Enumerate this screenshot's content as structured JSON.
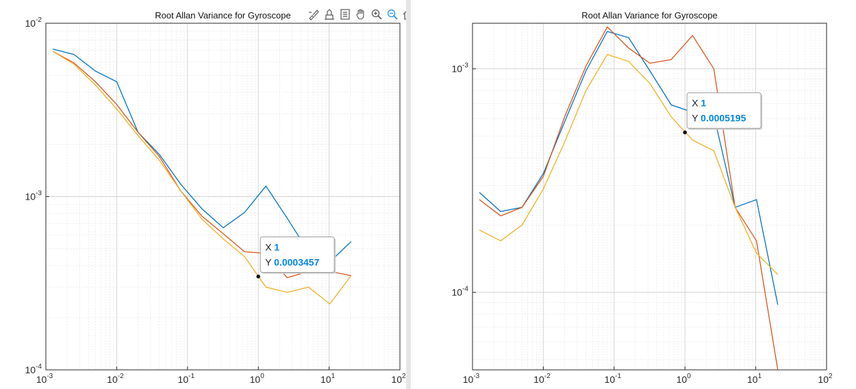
{
  "colors": {
    "series": [
      "#0072BD",
      "#D95319",
      "#EDB120"
    ],
    "grid_major": "#d0d0d0",
    "grid_minor": "#e8e8e8",
    "axes": "#262626",
    "datatip_value": "#0085e0"
  },
  "toolbar": {
    "icons": [
      "brush-icon",
      "data-cursor-icon",
      "restore-view-icon",
      "pan-icon",
      "zoom-in-icon",
      "zoom-out-icon",
      "home-icon"
    ]
  },
  "chart_data": [
    {
      "type": "line",
      "title": "Root Allan Variance for Gyroscope",
      "xlabel": "",
      "ylabel": "",
      "x_scale": "log",
      "y_scale": "log",
      "xlim": [
        0.001,
        100
      ],
      "ylim": [
        0.0001,
        0.01
      ],
      "grid": true,
      "minor_grid": true,
      "x_ticks": [
        0.001,
        0.01,
        0.1,
        1,
        10,
        100
      ],
      "x_tick_labels": [
        [
          "10",
          "-3"
        ],
        [
          "10",
          "-2"
        ],
        [
          "10",
          "-1"
        ],
        [
          "10",
          "0"
        ],
        [
          "10",
          "1"
        ],
        [
          "10",
          "2"
        ]
      ],
      "y_ticks": [
        0.0001,
        0.001,
        0.01
      ],
      "y_tick_labels": [
        [
          "10",
          "-4"
        ],
        [
          "10",
          "-3"
        ],
        [
          "10",
          "-2"
        ]
      ],
      "x": [
        0.00125,
        0.0025,
        0.005,
        0.01,
        0.02,
        0.04,
        0.08,
        0.16,
        0.32,
        0.64,
        1.28,
        2.56,
        5.12,
        10.24,
        20.48
      ],
      "series": [
        {
          "values": [
            0.0071,
            0.0066,
            0.0053,
            0.0046,
            0.00235,
            0.00175,
            0.00118,
            0.00085,
            0.00066,
            0.00081,
            0.00115,
            0.00075,
            0.00048,
            0.00042,
            0.00055
          ]
        },
        {
          "values": [
            0.0069,
            0.0059,
            0.0046,
            0.0034,
            0.00235,
            0.0017,
            0.00108,
            0.00077,
            0.00061,
            0.00048,
            0.00047,
            0.00034,
            0.00037,
            0.00037,
            0.00035
          ]
        },
        {
          "values": [
            0.0069,
            0.0058,
            0.0044,
            0.0032,
            0.00225,
            0.00162,
            0.00108,
            0.00074,
            0.00057,
            0.00045,
            0.0003,
            0.00028,
            0.0003,
            0.00024,
            0.00035
          ]
        }
      ],
      "datatip": {
        "x": 1,
        "y": 0.0003457,
        "x_label": "X",
        "x_text": "1",
        "y_label": "Y",
        "y_text": "0.0003457"
      }
    },
    {
      "type": "line",
      "title": "Root Allan Variance for Gyroscope",
      "xlabel": "",
      "ylabel": "",
      "x_scale": "log",
      "y_scale": "log",
      "xlim": [
        0.001,
        100
      ],
      "ylim": [
        4.5e-05,
        0.0016
      ],
      "grid": true,
      "minor_grid": true,
      "x_ticks": [
        0.001,
        0.01,
        0.1,
        1,
        10,
        100
      ],
      "x_tick_labels": [
        [
          "10",
          "-3"
        ],
        [
          "10",
          "-2"
        ],
        [
          "10",
          "-1"
        ],
        [
          "10",
          "0"
        ],
        [
          "10",
          "1"
        ],
        [
          "10",
          "2"
        ]
      ],
      "y_ticks": [
        0.0001,
        0.001
      ],
      "y_tick_labels": [
        [
          "10",
          "-4"
        ],
        [
          "10",
          "-3"
        ]
      ],
      "x": [
        0.00125,
        0.0025,
        0.005,
        0.01,
        0.02,
        0.04,
        0.08,
        0.16,
        0.32,
        0.64,
        1.28,
        2.56,
        5.12,
        10.24,
        20.48
      ],
      "series": [
        {
          "values": [
            0.00028,
            0.00023,
            0.00024,
            0.00034,
            0.00058,
            0.00098,
            0.00147,
            0.00138,
            0.00098,
            0.00069,
            0.00064,
            0.00062,
            0.00024,
            0.00026,
            8.8e-05
          ]
        },
        {
          "values": [
            0.00026,
            0.00022,
            0.00024,
            0.00033,
            0.00061,
            0.00103,
            0.00154,
            0.00124,
            0.00106,
            0.0011,
            0.00141,
            0.001,
            0.00024,
            0.00017,
            4.5e-05
          ]
        },
        {
          "values": [
            0.00019,
            0.00017,
            0.0002,
            0.00029,
            0.00047,
            0.0008,
            0.00116,
            0.00108,
            0.00086,
            0.00061,
            0.00048,
            0.00043,
            0.00024,
            0.00015,
            0.00012
          ]
        }
      ],
      "datatip": {
        "x": 1,
        "y": 0.0005195,
        "x_label": "X",
        "x_text": "1",
        "y_label": "Y",
        "y_text": "0.0005195"
      }
    }
  ]
}
